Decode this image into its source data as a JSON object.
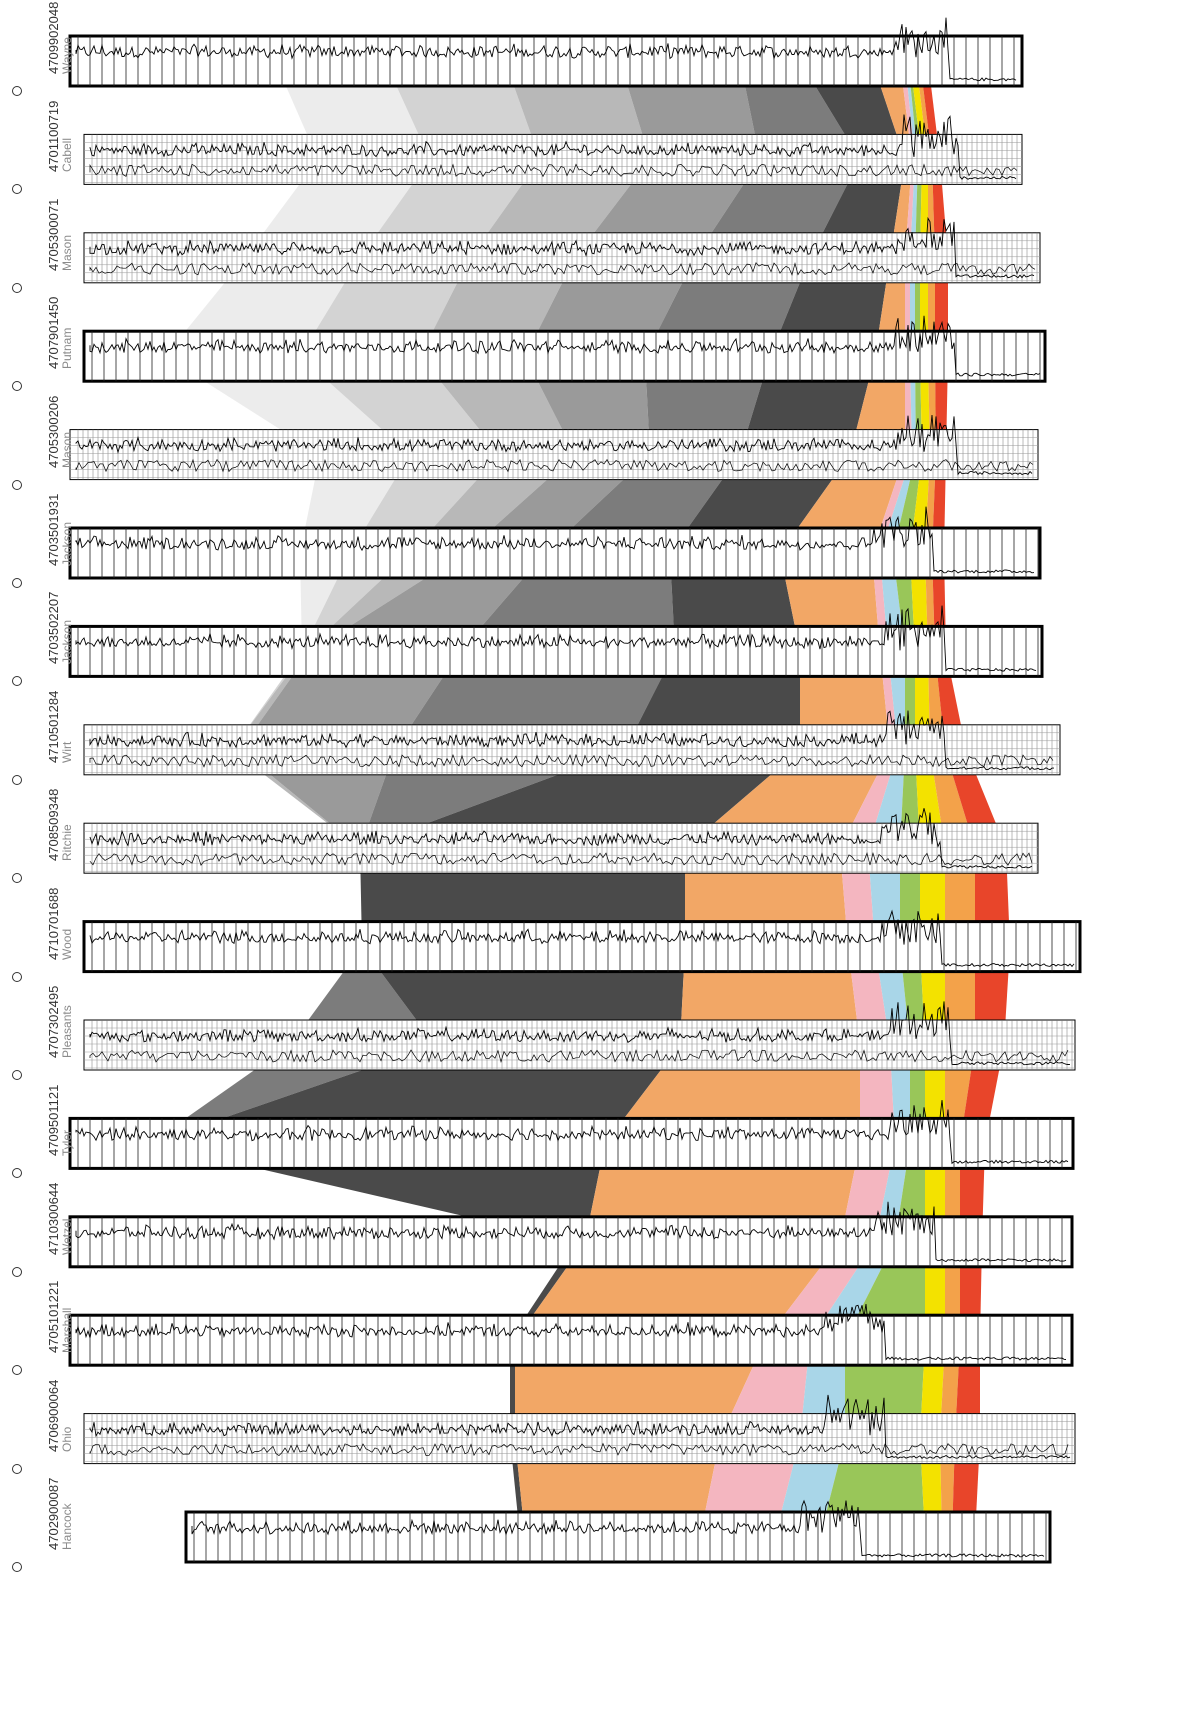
{
  "section": {
    "wells": [
      {
        "api": "4709902048",
        "county": "Wayne"
      },
      {
        "api": "4701100719",
        "county": "Cabell"
      },
      {
        "api": "4705300071",
        "county": "Mason"
      },
      {
        "api": "4707901450",
        "county": "Putnam"
      },
      {
        "api": "4705300206",
        "county": "Mason"
      },
      {
        "api": "4703501931",
        "county": "Jackson"
      },
      {
        "api": "4703502207",
        "county": "Jackson"
      },
      {
        "api": "4710501284",
        "county": "Wirt"
      },
      {
        "api": "4708509348",
        "county": "Ritchie"
      },
      {
        "api": "4710701688",
        "county": "Wood"
      },
      {
        "api": "4707302495",
        "county": "Pleasants"
      },
      {
        "api": "4709501121",
        "county": "Tyler"
      },
      {
        "api": "4710300644",
        "county": "Wetzel"
      },
      {
        "api": "4705101221",
        "county": "Marshall"
      },
      {
        "api": "4706900064",
        "county": "Ohio"
      },
      {
        "api": "4702900087",
        "county": "Hancock"
      }
    ],
    "unit_colors": [
      "#ececec",
      "#d3d3d3",
      "#b8b8b8",
      "#9a9a9a",
      "#7c7c7c",
      "#4a4a4a",
      "#f2a766",
      "#f4b6c0",
      "#a9d6e8",
      "#99c659",
      "#f3e200",
      "#f3a24a",
      "#e8452a"
    ]
  }
}
